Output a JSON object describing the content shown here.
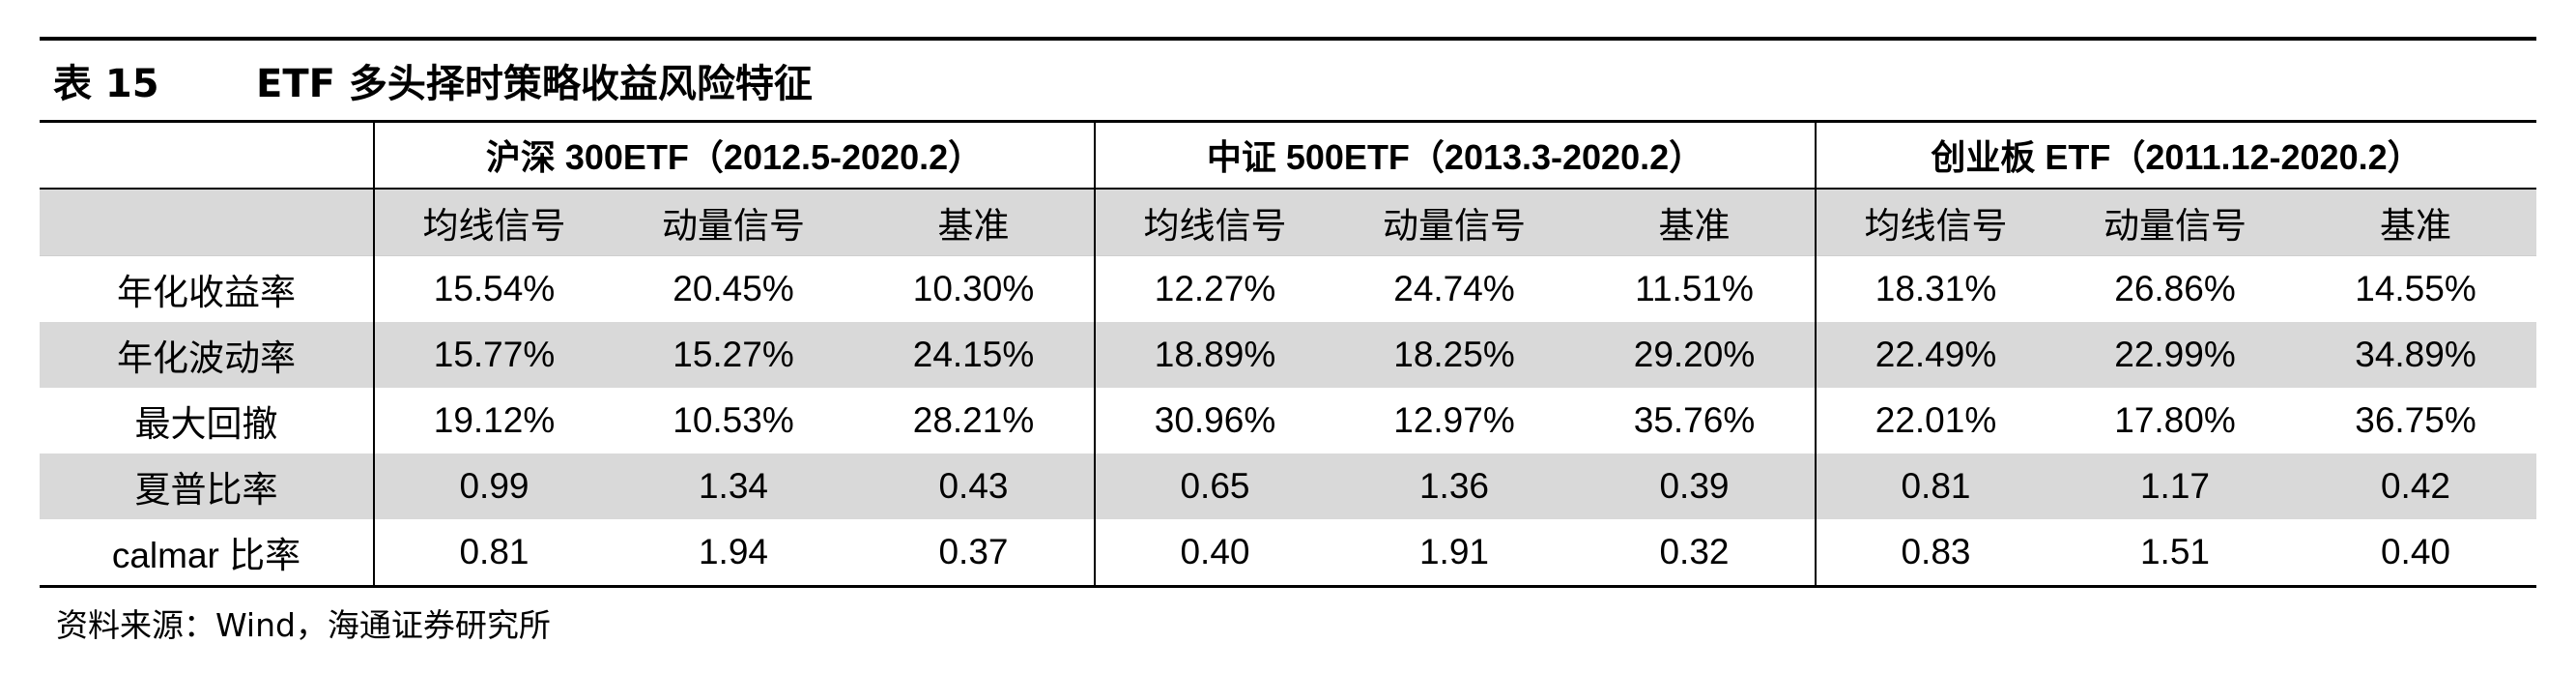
{
  "title": {
    "label": "表 15",
    "text": "ETF 多头择时策略收益风险特征"
  },
  "groups": [
    "沪深 300ETF（2012.5-2020.2）",
    "中证 500ETF（2013.3-2020.2）",
    "创业板 ETF（2011.12-2020.2）"
  ],
  "subheaders": [
    "均线信号",
    "动量信号",
    "基准"
  ],
  "rows": [
    {
      "label": "年化收益率",
      "values": [
        "15.54%",
        "20.45%",
        "10.30%",
        "12.27%",
        "24.74%",
        "11.51%",
        "18.31%",
        "26.86%",
        "14.55%"
      ]
    },
    {
      "label": "年化波动率",
      "values": [
        "15.77%",
        "15.27%",
        "24.15%",
        "18.89%",
        "18.25%",
        "29.20%",
        "22.49%",
        "22.99%",
        "34.89%"
      ]
    },
    {
      "label": "最大回撤",
      "values": [
        "19.12%",
        "10.53%",
        "28.21%",
        "30.96%",
        "12.97%",
        "35.76%",
        "22.01%",
        "17.80%",
        "36.75%"
      ]
    },
    {
      "label": "夏普比率",
      "values": [
        "0.99",
        "1.34",
        "0.43",
        "0.65",
        "1.36",
        "0.39",
        "0.81",
        "1.17",
        "0.42"
      ]
    },
    {
      "label": "calmar 比率",
      "values": [
        "0.81",
        "1.94",
        "0.37",
        "0.40",
        "1.91",
        "0.32",
        "0.83",
        "1.51",
        "0.40"
      ]
    }
  ],
  "source": "资料来源：Wind，海通证券研究所",
  "colors": {
    "shade": "#d9d9d9",
    "rule": "#000000"
  }
}
